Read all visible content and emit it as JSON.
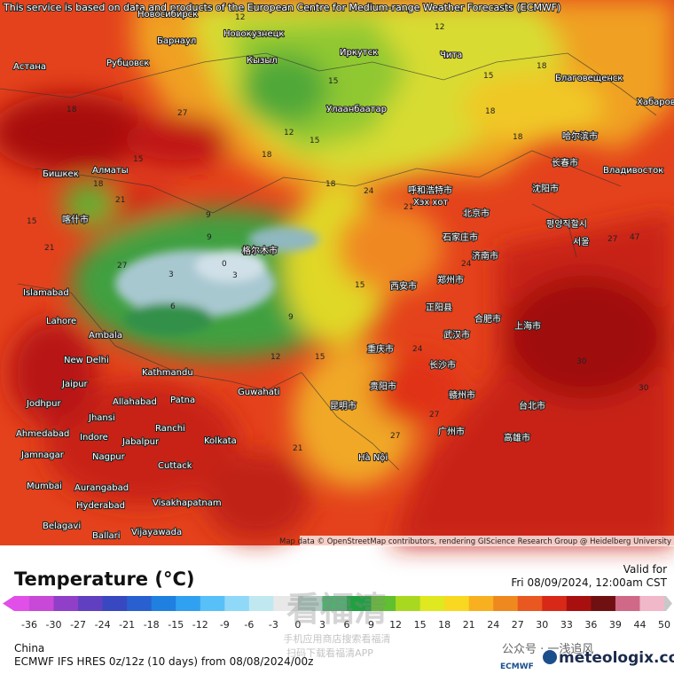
{
  "header": {
    "notice": "This service is based on data and products of the European Centre for Medium-range Weather Forecasts (ECMWF)"
  },
  "map": {
    "cities": [
      "Новосибирск",
      "Барнаул",
      "Новокузнецк",
      "Астана",
      "Рубцовск",
      "Кызыл",
      "Иркутск",
      "Чита",
      "Благовещенск",
      "Хабаровск",
      "Улаанбаатар",
      "Бишкек",
      "Алматы",
      "Владивосток",
      "呼和浩特市",
      "Хэх хот",
      "北京市",
      "沈阳市",
      "长春市",
      "哈尔滨市",
      "평양직할시",
      "서울",
      "石家庄市",
      "济南市",
      "喀什市",
      "格尔木市",
      "西安市",
      "郑州市",
      "正阳县",
      "合肥市",
      "上海市",
      "武汉市",
      "重庆市",
      "长沙市",
      "贵阳市",
      "昆明市",
      "赣州市",
      "广州市",
      "台北市",
      "高雄市",
      "Islamabad",
      "Lahore",
      "Ambala",
      "New Delhi",
      "Kathmandu",
      "Guwahati",
      "Jaipur",
      "Jodhpur",
      "Allahabad",
      "Patna",
      "Jhansi",
      "Ranchi",
      "Ahmedabad",
      "Indore",
      "Jabalpur",
      "Kolkata",
      "Jamnagar",
      "Nagpur",
      "Cuttack",
      "Mumbai",
      "Aurangabad",
      "Hyderabad",
      "Visakhapatnam",
      "Belagavi",
      "Ballari",
      "Vijayawada",
      "Hà Nội"
    ],
    "values": [
      12,
      15,
      12,
      15,
      18,
      18,
      24,
      21,
      18,
      18,
      18,
      9,
      9,
      0,
      6,
      3,
      3,
      9,
      12,
      15,
      24,
      24,
      27,
      27,
      21,
      27,
      47,
      30,
      30,
      15,
      15,
      21,
      21,
      18,
      27,
      27,
      18,
      15,
      15,
      12
    ],
    "attribution": "Map data © OpenStreetMap contributors, rendering GIScience Research Group @ Heidelberg University"
  },
  "legend": {
    "title": "Temperature (°C)",
    "valid_label": "Valid for",
    "valid_time": "Fri 08/09/2024, 12:00am CST",
    "region": "China",
    "model": "ECMWF IFS HRES 0z/12z (10 days) from 08/08/2024/00z",
    "ticks": [
      -36,
      -30,
      -27,
      -24,
      -21,
      -18,
      -15,
      -12,
      -9,
      -6,
      -3,
      0,
      3,
      6,
      9,
      12,
      15,
      18,
      21,
      24,
      27,
      30,
      33,
      36,
      39,
      44,
      50
    ],
    "colors": [
      "#e050e8",
      "#c848d8",
      "#9040c8",
      "#6040c0",
      "#3848c0",
      "#2860d0",
      "#2080e0",
      "#30a0f0",
      "#58c0f8",
      "#90d8f8",
      "#c0e8f0",
      "#e8e8e8",
      "#b0c8c0",
      "#50b070",
      "#20a040",
      "#60c030",
      "#a8d820",
      "#e0e820",
      "#f8d820",
      "#f8b020",
      "#f08820",
      "#e85820",
      "#d82818",
      "#a81010",
      "#701010",
      "#d06888",
      "#f0b8c8",
      "#c8c8c8"
    ]
  },
  "branding": {
    "site": "meteologix.com",
    "org": "ECMWF",
    "wechat": "公众号 · 一浅追风",
    "watermark": "看福清",
    "watermark_line1": "手机应用商店搜索看福清",
    "watermark_line2": "扫码下载看福清APP"
  }
}
